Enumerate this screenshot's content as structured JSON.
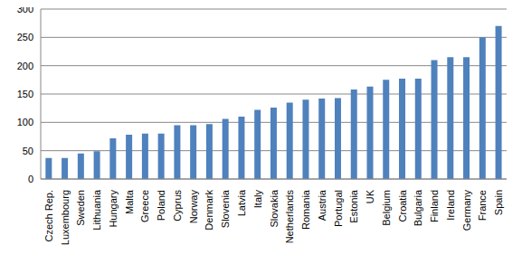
{
  "chart_data": {
    "type": "bar",
    "categories": [
      "Czech Rep.",
      "Luxembourg",
      "Sweden",
      "Lithuania",
      "Hungary",
      "Malta",
      "Greece",
      "Poland",
      "Cyprus",
      "Norway",
      "Denmark",
      "Slovenia",
      "Latvia",
      "Italy",
      "Slovakia",
      "Netherlands",
      "Romania",
      "Austria",
      "Portugal",
      "Estonia",
      "UK",
      "Belgium",
      "Croatia",
      "Bulgaria",
      "Finland",
      "Ireland",
      "Germany",
      "France",
      "Spain"
    ],
    "values": [
      37,
      37,
      45,
      49,
      72,
      78,
      80,
      80,
      95,
      95,
      97,
      106,
      110,
      122,
      126,
      135,
      140,
      142,
      143,
      158,
      163,
      175,
      177,
      177,
      210,
      215,
      215,
      250,
      270
    ],
    "color": "#4f81bd",
    "ylim": [
      0,
      300
    ],
    "yticks": [
      0,
      50,
      100,
      150,
      200,
      250,
      300
    ],
    "grid": true
  }
}
